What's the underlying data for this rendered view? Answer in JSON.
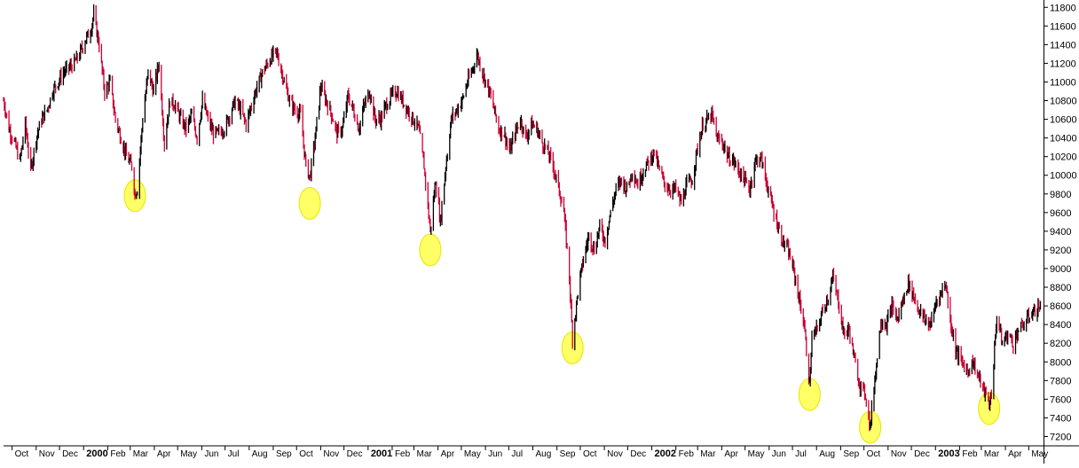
{
  "chart_data": {
    "type": "line",
    "title": "",
    "xlabel": "",
    "ylabel": "",
    "ylim": [
      7100,
      11850
    ],
    "y_ticks": [
      7200,
      7400,
      7600,
      7800,
      8000,
      8200,
      8400,
      8600,
      8800,
      9000,
      9200,
      9400,
      9600,
      9800,
      10000,
      10200,
      10400,
      10600,
      10800,
      11000,
      11200,
      11400,
      11600,
      11800
    ],
    "y_axis_side": "right",
    "grid": false,
    "legend": "none",
    "x_range": [
      "1999-09-20",
      "2003-05-20"
    ],
    "x_ticks": [
      {
        "label": "Oct",
        "date": "1999-10-01",
        "bold": false
      },
      {
        "label": "Nov",
        "date": "1999-11-01",
        "bold": false
      },
      {
        "label": "Dec",
        "date": "1999-12-01",
        "bold": false
      },
      {
        "label": "2000",
        "date": "2000-01-01",
        "bold": true
      },
      {
        "label": "Feb",
        "date": "2000-02-01",
        "bold": false
      },
      {
        "label": "Mar",
        "date": "2000-03-01",
        "bold": false
      },
      {
        "label": "Apr",
        "date": "2000-04-01",
        "bold": false
      },
      {
        "label": "May",
        "date": "2000-05-01",
        "bold": false
      },
      {
        "label": "Jun",
        "date": "2000-06-01",
        "bold": false
      },
      {
        "label": "Jul",
        "date": "2000-07-01",
        "bold": false
      },
      {
        "label": "Aug",
        "date": "2000-08-01",
        "bold": false
      },
      {
        "label": "Sep",
        "date": "2000-09-01",
        "bold": false
      },
      {
        "label": "Oct",
        "date": "2000-10-01",
        "bold": false
      },
      {
        "label": "Nov",
        "date": "2000-11-01",
        "bold": false
      },
      {
        "label": "Dec",
        "date": "2000-12-01",
        "bold": false
      },
      {
        "label": "2001",
        "date": "2001-01-01",
        "bold": true
      },
      {
        "label": "Feb",
        "date": "2001-02-01",
        "bold": false
      },
      {
        "label": "Mar",
        "date": "2001-03-01",
        "bold": false
      },
      {
        "label": "Apr",
        "date": "2001-04-01",
        "bold": false
      },
      {
        "label": "May",
        "date": "2001-05-01",
        "bold": false
      },
      {
        "label": "Jun",
        "date": "2001-06-01",
        "bold": false
      },
      {
        "label": "Jul",
        "date": "2001-07-01",
        "bold": false
      },
      {
        "label": "Aug",
        "date": "2001-08-01",
        "bold": false
      },
      {
        "label": "Sep",
        "date": "2001-09-01",
        "bold": false
      },
      {
        "label": "Oct",
        "date": "2001-10-01",
        "bold": false
      },
      {
        "label": "Nov",
        "date": "2001-11-01",
        "bold": false
      },
      {
        "label": "Dec",
        "date": "2001-12-01",
        "bold": false
      },
      {
        "label": "2002",
        "date": "2002-01-01",
        "bold": true
      },
      {
        "label": "Feb",
        "date": "2002-02-01",
        "bold": false
      },
      {
        "label": "Mar",
        "date": "2002-03-01",
        "bold": false
      },
      {
        "label": "Apr",
        "date": "2002-04-01",
        "bold": false
      },
      {
        "label": "May",
        "date": "2002-05-01",
        "bold": false
      },
      {
        "label": "Jun",
        "date": "2002-06-01",
        "bold": false
      },
      {
        "label": "Jul",
        "date": "2002-07-01",
        "bold": false
      },
      {
        "label": "Aug",
        "date": "2002-08-01",
        "bold": false
      },
      {
        "label": "Sep",
        "date": "2002-09-01",
        "bold": false
      },
      {
        "label": "Oct",
        "date": "2002-10-01",
        "bold": false
      },
      {
        "label": "Nov",
        "date": "2002-11-01",
        "bold": false
      },
      {
        "label": "Dec",
        "date": "2002-12-01",
        "bold": false
      },
      {
        "label": "2003",
        "date": "2003-01-01",
        "bold": true
      },
      {
        "label": "Feb",
        "date": "2003-02-01",
        "bold": false
      },
      {
        "label": "Mar",
        "date": "2003-03-01",
        "bold": false
      },
      {
        "label": "Apr",
        "date": "2003-04-01",
        "bold": false
      },
      {
        "label": "May",
        "date": "2003-05-01",
        "bold": false
      }
    ],
    "series": [
      {
        "style": "daily-bars",
        "color_down": "#cc0033",
        "color_up": "#000000",
        "points": [
          [
            "1999-09-20",
            10800
          ],
          [
            "1999-09-27",
            10500
          ],
          [
            "1999-10-04",
            10350
          ],
          [
            "1999-10-11",
            10150
          ],
          [
            "1999-10-18",
            10550
          ],
          [
            "1999-10-25",
            10050
          ],
          [
            "1999-11-01",
            10400
          ],
          [
            "1999-11-08",
            10600
          ],
          [
            "1999-11-15",
            10700
          ],
          [
            "1999-11-22",
            10900
          ],
          [
            "1999-11-29",
            11000
          ],
          [
            "1999-12-06",
            11100
          ],
          [
            "1999-12-13",
            11150
          ],
          [
            "1999-12-20",
            11200
          ],
          [
            "1999-12-27",
            11300
          ],
          [
            "2000-01-03",
            11450
          ],
          [
            "2000-01-10",
            11550
          ],
          [
            "2000-01-14",
            11720
          ],
          [
            "2000-01-21",
            11400
          ],
          [
            "2000-01-28",
            10900
          ],
          [
            "2000-02-04",
            11000
          ],
          [
            "2000-02-11",
            10600
          ],
          [
            "2000-02-18",
            10400
          ],
          [
            "2000-02-25",
            10200
          ],
          [
            "2000-03-03",
            10100
          ],
          [
            "2000-03-07",
            9800
          ],
          [
            "2000-03-10",
            9850
          ],
          [
            "2000-03-17",
            10600
          ],
          [
            "2000-03-24",
            11100
          ],
          [
            "2000-03-31",
            10900
          ],
          [
            "2000-04-07",
            11200
          ],
          [
            "2000-04-14",
            10350
          ],
          [
            "2000-04-21",
            10800
          ],
          [
            "2000-04-28",
            10750
          ],
          [
            "2000-05-05",
            10600
          ],
          [
            "2000-05-12",
            10500
          ],
          [
            "2000-05-19",
            10650
          ],
          [
            "2000-05-26",
            10400
          ],
          [
            "2000-06-02",
            10800
          ],
          [
            "2000-06-09",
            10600
          ],
          [
            "2000-06-16",
            10450
          ],
          [
            "2000-06-23",
            10450
          ],
          [
            "2000-06-30",
            10500
          ],
          [
            "2000-07-07",
            10650
          ],
          [
            "2000-07-14",
            10800
          ],
          [
            "2000-07-21",
            10700
          ],
          [
            "2000-07-28",
            10550
          ],
          [
            "2000-08-04",
            10750
          ],
          [
            "2000-08-11",
            10950
          ],
          [
            "2000-08-18",
            11100
          ],
          [
            "2000-08-25",
            11200
          ],
          [
            "2000-09-01",
            11300
          ],
          [
            "2000-09-06",
            11300
          ],
          [
            "2000-09-15",
            11000
          ],
          [
            "2000-09-22",
            10800
          ],
          [
            "2000-09-29",
            10700
          ],
          [
            "2000-10-06",
            10650
          ],
          [
            "2000-10-13",
            10100
          ],
          [
            "2000-10-18",
            9980
          ],
          [
            "2000-10-25",
            10400
          ],
          [
            "2000-11-01",
            10950
          ],
          [
            "2000-11-08",
            10800
          ],
          [
            "2000-11-15",
            10650
          ],
          [
            "2000-11-22",
            10450
          ],
          [
            "2000-11-29",
            10500
          ],
          [
            "2000-12-06",
            10850
          ],
          [
            "2000-12-13",
            10700
          ],
          [
            "2000-12-20",
            10500
          ],
          [
            "2000-12-27",
            10750
          ],
          [
            "2001-01-03",
            10900
          ],
          [
            "2001-01-10",
            10600
          ],
          [
            "2001-01-17",
            10600
          ],
          [
            "2001-01-24",
            10750
          ],
          [
            "2001-01-31",
            10850
          ],
          [
            "2001-02-07",
            10900
          ],
          [
            "2001-02-14",
            10800
          ],
          [
            "2001-02-21",
            10700
          ],
          [
            "2001-02-28",
            10600
          ],
          [
            "2001-03-07",
            10500
          ],
          [
            "2001-03-14",
            10100
          ],
          [
            "2001-03-22",
            9400
          ],
          [
            "2001-03-29",
            9950
          ],
          [
            "2001-04-04",
            9500
          ],
          [
            "2001-04-11",
            10100
          ],
          [
            "2001-04-18",
            10600
          ],
          [
            "2001-04-25",
            10700
          ],
          [
            "2001-05-02",
            10800
          ],
          [
            "2001-05-09",
            11000
          ],
          [
            "2001-05-16",
            11150
          ],
          [
            "2001-05-21",
            11300
          ],
          [
            "2001-05-28",
            11100
          ],
          [
            "2001-06-04",
            10950
          ],
          [
            "2001-06-11",
            10750
          ],
          [
            "2001-06-18",
            10500
          ],
          [
            "2001-06-25",
            10450
          ],
          [
            "2001-07-02",
            10250
          ],
          [
            "2001-07-09",
            10450
          ],
          [
            "2001-07-16",
            10600
          ],
          [
            "2001-07-23",
            10400
          ],
          [
            "2001-07-30",
            10550
          ],
          [
            "2001-08-06",
            10500
          ],
          [
            "2001-08-13",
            10350
          ],
          [
            "2001-08-20",
            10250
          ],
          [
            "2001-08-27",
            10100
          ],
          [
            "2001-09-05",
            9800
          ],
          [
            "2001-09-10",
            9600
          ],
          [
            "2001-09-17",
            8900
          ],
          [
            "2001-09-21",
            8250
          ],
          [
            "2001-09-28",
            8750
          ],
          [
            "2001-10-05",
            9100
          ],
          [
            "2001-10-12",
            9350
          ],
          [
            "2001-10-19",
            9200
          ],
          [
            "2001-10-26",
            9450
          ],
          [
            "2001-11-02",
            9300
          ],
          [
            "2001-11-09",
            9600
          ],
          [
            "2001-11-16",
            9850
          ],
          [
            "2001-11-23",
            9950
          ],
          [
            "2001-11-30",
            9850
          ],
          [
            "2001-12-07",
            10050
          ],
          [
            "2001-12-14",
            9900
          ],
          [
            "2001-12-21",
            10050
          ],
          [
            "2001-12-28",
            10150
          ],
          [
            "2002-01-04",
            10250
          ],
          [
            "2002-01-11",
            10050
          ],
          [
            "2002-01-18",
            9900
          ],
          [
            "2002-01-25",
            9850
          ],
          [
            "2002-02-01",
            9850
          ],
          [
            "2002-02-08",
            9700
          ],
          [
            "2002-02-15",
            9900
          ],
          [
            "2002-02-22",
            9950
          ],
          [
            "2002-03-01",
            10300
          ],
          [
            "2002-03-08",
            10550
          ],
          [
            "2002-03-15",
            10600
          ],
          [
            "2002-03-19",
            10650
          ],
          [
            "2002-03-26",
            10400
          ],
          [
            "2002-04-02",
            10350
          ],
          [
            "2002-04-09",
            10200
          ],
          [
            "2002-04-16",
            10150
          ],
          [
            "2002-04-23",
            10050
          ],
          [
            "2002-04-30",
            9950
          ],
          [
            "2002-05-07",
            9850
          ],
          [
            "2002-05-14",
            10150
          ],
          [
            "2002-05-21",
            10200
          ],
          [
            "2002-05-28",
            9950
          ],
          [
            "2002-06-04",
            9700
          ],
          [
            "2002-06-11",
            9500
          ],
          [
            "2002-06-18",
            9300
          ],
          [
            "2002-06-25",
            9200
          ],
          [
            "2002-07-02",
            9000
          ],
          [
            "2002-07-09",
            8700
          ],
          [
            "2002-07-16",
            8400
          ],
          [
            "2002-07-23",
            7750
          ],
          [
            "2002-07-26",
            8250
          ],
          [
            "2002-08-02",
            8350
          ],
          [
            "2002-08-09",
            8550
          ],
          [
            "2002-08-16",
            8700
          ],
          [
            "2002-08-22",
            8900
          ],
          [
            "2002-08-29",
            8650
          ],
          [
            "2002-09-05",
            8300
          ],
          [
            "2002-09-12",
            8350
          ],
          [
            "2002-09-19",
            8000
          ],
          [
            "2002-09-26",
            7750
          ],
          [
            "2002-10-03",
            7650
          ],
          [
            "2002-10-09",
            7300
          ],
          [
            "2002-10-16",
            7900
          ],
          [
            "2002-10-23",
            8450
          ],
          [
            "2002-10-30",
            8400
          ],
          [
            "2002-11-06",
            8600
          ],
          [
            "2002-11-13",
            8450
          ],
          [
            "2002-11-20",
            8650
          ],
          [
            "2002-11-27",
            8850
          ],
          [
            "2002-12-04",
            8700
          ],
          [
            "2002-12-11",
            8550
          ],
          [
            "2002-12-18",
            8450
          ],
          [
            "2002-12-26",
            8400
          ],
          [
            "2003-01-02",
            8650
          ],
          [
            "2003-01-09",
            8750
          ],
          [
            "2003-01-14",
            8850
          ],
          [
            "2003-01-21",
            8400
          ],
          [
            "2003-01-28",
            8100
          ],
          [
            "2003-02-04",
            8000
          ],
          [
            "2003-02-11",
            7900
          ],
          [
            "2003-02-18",
            8000
          ],
          [
            "2003-02-25",
            7850
          ],
          [
            "2003-03-04",
            7700
          ],
          [
            "2003-03-11",
            7550
          ],
          [
            "2003-03-14",
            7650
          ],
          [
            "2003-03-21",
            8500
          ],
          [
            "2003-03-28",
            8200
          ],
          [
            "2003-04-04",
            8300
          ],
          [
            "2003-04-11",
            8200
          ],
          [
            "2003-04-18",
            8350
          ],
          [
            "2003-04-25",
            8400
          ],
          [
            "2003-05-02",
            8500
          ],
          [
            "2003-05-09",
            8550
          ],
          [
            "2003-05-16",
            8600
          ]
        ]
      }
    ],
    "annotations": {
      "type": "highlight-circles",
      "color": "#ffff33",
      "points": [
        [
          "2000-03-07",
          9780
        ],
        [
          "2000-10-18",
          9700
        ],
        [
          "2001-03-22",
          9200
        ],
        [
          "2001-09-21",
          8150
        ],
        [
          "2002-07-23",
          7650
        ],
        [
          "2002-10-09",
          7300
        ],
        [
          "2003-03-11",
          7500
        ]
      ]
    }
  }
}
